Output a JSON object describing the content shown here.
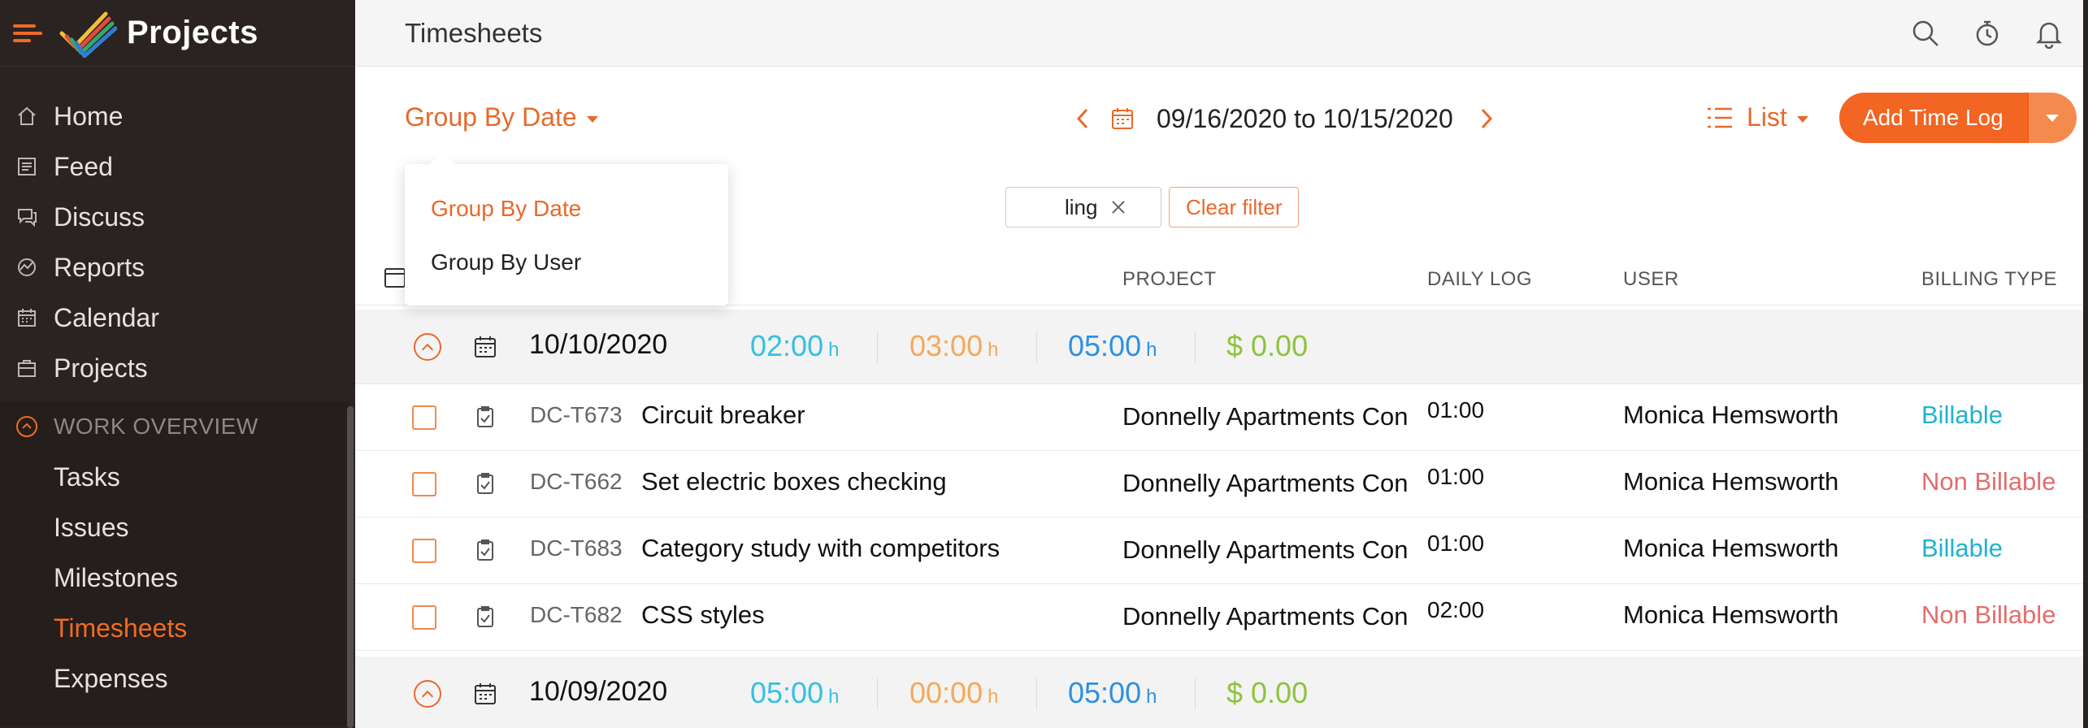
{
  "app": {
    "brand": "Projects",
    "page_title": "Timesheets"
  },
  "sidebar": {
    "items": [
      {
        "label": "Home",
        "icon": "home-icon"
      },
      {
        "label": "Feed",
        "icon": "feed-icon"
      },
      {
        "label": "Discuss",
        "icon": "discuss-icon"
      },
      {
        "label": "Reports",
        "icon": "reports-icon"
      },
      {
        "label": "Calendar",
        "icon": "calendar-icon"
      },
      {
        "label": "Projects",
        "icon": "projects-icon"
      }
    ],
    "section": {
      "title": "WORK OVERVIEW",
      "items": [
        {
          "label": "Tasks",
          "active": false
        },
        {
          "label": "Issues",
          "active": false
        },
        {
          "label": "Milestones",
          "active": false
        },
        {
          "label": "Timesheets",
          "active": true
        },
        {
          "label": "Expenses",
          "active": false
        }
      ]
    }
  },
  "toolbar": {
    "group_by_label": "Group By Date",
    "date_range": "09/16/2020 to 10/15/2020",
    "view_label": "List",
    "add_button_label": "Add Time Log"
  },
  "group_menu": {
    "items": [
      {
        "label": "Group By Date",
        "active": true
      },
      {
        "label": "Group By User",
        "active": false
      }
    ]
  },
  "filters": {
    "chip_label": "ling",
    "clear_label": "Clear filter"
  },
  "table": {
    "columns": {
      "project": "PROJECT",
      "daily_log": "DAILY LOG",
      "user": "USER",
      "billing_type": "BILLING TYPE"
    },
    "groups": [
      {
        "date": "10/10/2020",
        "billable_hours": "02:00",
        "non_billable_hours": "03:00",
        "total_hours": "05:00",
        "hours_unit": "h",
        "amount": "$ 0.00",
        "rows": [
          {
            "key": "DC-T673",
            "task": "Circuit breaker",
            "project": "Donnelly Apartments Cons",
            "daily_log": "01:00",
            "user": "Monica Hemsworth",
            "billing": "Billable",
            "billable": true
          },
          {
            "key": "DC-T662",
            "task": "Set electric boxes checking",
            "project": "Donnelly Apartments Cons",
            "daily_log": "01:00",
            "user": "Monica Hemsworth",
            "billing": "Non Billable",
            "billable": false
          },
          {
            "key": "DC-T683",
            "task": "Category study with competitors",
            "project": "Donnelly Apartments Cons",
            "daily_log": "01:00",
            "user": "Monica Hemsworth",
            "billing": "Billable",
            "billable": true
          },
          {
            "key": "DC-T682",
            "task": "CSS styles",
            "project": "Donnelly Apartments Cons",
            "daily_log": "02:00",
            "user": "Monica Hemsworth",
            "billing": "Non Billable",
            "billable": false
          }
        ]
      },
      {
        "date": "10/09/2020",
        "billable_hours": "05:00",
        "non_billable_hours": "00:00",
        "total_hours": "05:00",
        "hours_unit": "h",
        "amount": "$ 0.00",
        "rows": []
      }
    ]
  },
  "colors": {
    "accent": "#f26522",
    "sidebar_bg": "#2a2321",
    "billable_hours": "#35c0e0",
    "non_billable_hours": "#f5a85a",
    "total_hours": "#2e90e0",
    "amount": "#8dc33c",
    "billable_text": "#20b3cd",
    "non_billable_text": "#e46d6d"
  }
}
